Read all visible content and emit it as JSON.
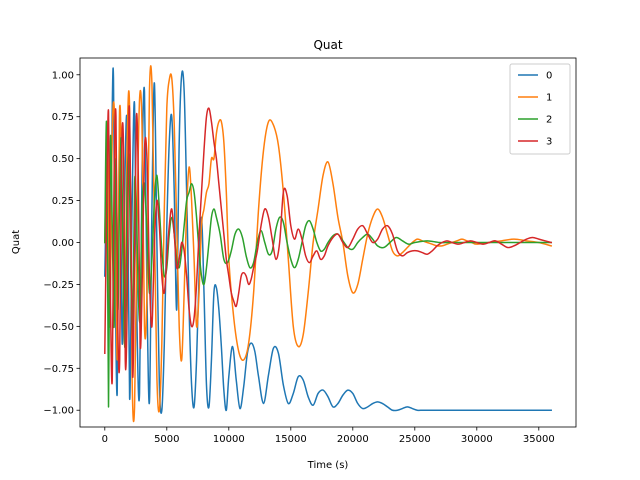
{
  "chart_data": {
    "type": "line",
    "title": "Quat",
    "xlabel": "Time (s)",
    "ylabel": "Quat",
    "xlim": [
      -2000,
      38000
    ],
    "ylim": [
      -1.1,
      1.1
    ],
    "xticks": [
      0,
      5000,
      10000,
      15000,
      20000,
      25000,
      30000,
      35000
    ],
    "xtick_labels": [
      "0",
      "5000",
      "10000",
      "15000",
      "20000",
      "25000",
      "30000",
      "35000"
    ],
    "yticks": [
      -1.0,
      -0.75,
      -0.5,
      -0.25,
      0.0,
      0.25,
      0.5,
      0.75,
      1.0
    ],
    "ytick_labels": [
      "−1.00",
      "−0.75",
      "−0.50",
      "−0.25",
      "0.00",
      "0.25",
      "0.50",
      "0.75",
      "1.00"
    ],
    "grid": false,
    "legend_position": "top-right",
    "series": [
      {
        "name": "0",
        "color": "#1f77b4",
        "x": [
          0,
          200,
          400,
          600,
          700,
          800,
          1000,
          1200,
          1400,
          1600,
          1800,
          2000,
          2200,
          2400,
          2600,
          2800,
          3000,
          3200,
          3400,
          3600,
          3800,
          4000,
          4200,
          4400,
          4600,
          4800,
          5000,
          5200,
          5400,
          5600,
          5800,
          6000,
          6200,
          6400,
          6600,
          6800,
          7000,
          7200,
          7400,
          7600,
          7800,
          8000,
          8200,
          8400,
          8600,
          8800,
          9000,
          9200,
          9400,
          9600,
          9800,
          10000,
          10300,
          10600,
          10900,
          11200,
          11500,
          11800,
          12100,
          12400,
          12800,
          13200,
          13600,
          14000,
          14400,
          14800,
          15200,
          15600,
          16000,
          16400,
          16800,
          17200,
          17600,
          18000,
          18400,
          18800,
          19200,
          19600,
          20000,
          20400,
          20800,
          21200,
          21600,
          22000,
          22400,
          22800,
          23200,
          23600,
          24000,
          24400,
          24800,
          25200,
          25600,
          26000,
          27000,
          28000,
          29000,
          30000,
          31000,
          32000,
          33000,
          34000,
          35000,
          36000
        ],
        "y": [
          -0.2,
          0.4,
          -0.5,
          0.8,
          0.98,
          0.1,
          -0.9,
          0.81,
          -0.6,
          0.3,
          0.7,
          -0.93,
          0.2,
          0.82,
          -0.5,
          -0.9,
          0.4,
          0.9,
          -0.3,
          -0.95,
          0.2,
          0.95,
          0.0,
          -0.85,
          -1.0,
          -0.6,
          0.1,
          0.6,
          0.75,
          0.3,
          -0.4,
          0.6,
          1.0,
          0.9,
          0.3,
          -0.4,
          -0.85,
          -0.98,
          -0.7,
          -0.2,
          0.15,
          -0.3,
          -0.85,
          -0.98,
          -0.7,
          -0.3,
          -0.27,
          -0.4,
          -0.62,
          -0.88,
          -1.0,
          -0.8,
          -0.62,
          -0.82,
          -0.99,
          -0.86,
          -0.66,
          -0.6,
          -0.65,
          -0.8,
          -0.96,
          -0.79,
          -0.63,
          -0.66,
          -0.85,
          -0.96,
          -0.9,
          -0.8,
          -0.82,
          -0.92,
          -0.97,
          -0.9,
          -0.88,
          -0.92,
          -0.98,
          -0.96,
          -0.91,
          -0.88,
          -0.9,
          -0.96,
          -0.99,
          -0.98,
          -0.96,
          -0.95,
          -0.96,
          -0.98,
          -1.0,
          -1.0,
          -0.99,
          -0.98,
          -0.99,
          -1.0,
          -1.0,
          -1.0,
          -1.0,
          -1.0,
          -1.0,
          -1.0,
          -1.0,
          -1.0,
          -1.0,
          -1.0,
          -1.0,
          -1.0
        ]
      },
      {
        "name": "1",
        "color": "#ff7f0e",
        "x": [
          0,
          200,
          400,
          600,
          800,
          1000,
          1200,
          1400,
          1600,
          1800,
          2000,
          2200,
          2400,
          2600,
          2800,
          3000,
          3200,
          3400,
          3600,
          3800,
          4000,
          4200,
          4400,
          4600,
          4800,
          5000,
          5200,
          5400,
          5600,
          5800,
          6000,
          6200,
          6400,
          6600,
          6800,
          7000,
          7200,
          7400,
          7600,
          7800,
          8000,
          8200,
          8400,
          8600,
          8800,
          9000,
          9200,
          9400,
          9600,
          9800,
          10000,
          10400,
          10800,
          11200,
          11600,
          12000,
          12400,
          12800,
          13200,
          13600,
          14000,
          14400,
          14800,
          15200,
          15600,
          16000,
          16400,
          16800,
          17200,
          17600,
          18000,
          18400,
          18800,
          19200,
          19600,
          20000,
          20400,
          20800,
          21200,
          21600,
          22000,
          22400,
          22800,
          23200,
          23600,
          24000,
          24400,
          24800,
          25200,
          25600,
          26000,
          26400,
          26800,
          27200,
          27600,
          28000,
          28400,
          28800,
          29200,
          29600,
          30000,
          31000,
          32000,
          33000,
          34000,
          35000,
          36000
        ],
        "y": [
          0.0,
          0.6,
          -0.5,
          0.65,
          0.7,
          -0.7,
          0.79,
          0.2,
          -0.6,
          0.6,
          0.8,
          -0.8,
          -0.98,
          0.1,
          0.85,
          0.7,
          -0.5,
          -0.3,
          0.9,
          0.95,
          0.1,
          -0.8,
          -1.0,
          -0.6,
          0.2,
          0.8,
          0.97,
          0.98,
          0.7,
          0.1,
          -0.5,
          -0.7,
          -0.3,
          0.2,
          0.45,
          0.25,
          -0.1,
          -0.5,
          -0.3,
          0.1,
          0.2,
          0.3,
          0.35,
          0.5,
          0.5,
          0.65,
          0.72,
          0.72,
          0.6,
          0.3,
          -0.1,
          -0.45,
          -0.65,
          -0.7,
          -0.6,
          -0.3,
          0.2,
          0.55,
          0.72,
          0.7,
          0.58,
          0.3,
          -0.1,
          -0.5,
          -0.62,
          -0.55,
          -0.3,
          0.0,
          0.2,
          0.4,
          0.48,
          0.35,
          0.15,
          0.0,
          -0.2,
          -0.3,
          -0.25,
          -0.1,
          0.05,
          0.15,
          0.2,
          0.15,
          0.05,
          -0.05,
          -0.08,
          -0.06,
          -0.03,
          0.0,
          0.02,
          0.01,
          0.0,
          -0.01,
          -0.02,
          -0.02,
          -0.01,
          0.0,
          0.01,
          0.02,
          0.01,
          0.0,
          -0.01,
          0.0,
          0.01,
          0.02,
          0.01,
          0.0,
          -0.02
        ]
      },
      {
        "name": "2",
        "color": "#2ca02c",
        "x": [
          0,
          150,
          300,
          450,
          600,
          750,
          900,
          1050,
          1200,
          1350,
          1500,
          1650,
          1800,
          1950,
          2100,
          2250,
          2400,
          2550,
          2700,
          2850,
          3000,
          3200,
          3400,
          3600,
          3800,
          4000,
          4200,
          4400,
          4600,
          4800,
          5000,
          5200,
          5400,
          5600,
          5800,
          6000,
          6200,
          6400,
          6600,
          6800,
          7000,
          7200,
          7400,
          7600,
          7800,
          8000,
          8200,
          8400,
          8600,
          8800,
          9000,
          9300,
          9600,
          9900,
          10200,
          10500,
          10800,
          11100,
          11400,
          11700,
          12000,
          12300,
          12600,
          12900,
          13200,
          13500,
          13800,
          14100,
          14400,
          14700,
          15000,
          15300,
          15600,
          15900,
          16200,
          16500,
          16800,
          17100,
          17400,
          17700,
          18000,
          18400,
          18800,
          19200,
          19600,
          20000,
          20400,
          20800,
          21200,
          21600,
          22000,
          22500,
          23000,
          23500,
          24000,
          24500,
          25000,
          26000,
          27000,
          28000,
          29000,
          30000,
          31000,
          32000,
          33000,
          34000,
          35000,
          36000
        ],
        "y": [
          0.0,
          0.7,
          -0.98,
          0.6,
          0.1,
          -0.5,
          0.5,
          -0.4,
          0.3,
          0.6,
          -0.3,
          -0.6,
          0.3,
          0.5,
          -0.2,
          -0.55,
          0.35,
          0.2,
          -0.3,
          -0.45,
          0.2,
          0.35,
          0.05,
          -0.3,
          -0.1,
          0.25,
          0.4,
          0.2,
          -0.05,
          -0.2,
          -0.15,
          0.05,
          0.15,
          0.05,
          -0.1,
          -0.15,
          -0.05,
          0.1,
          0.25,
          0.3,
          0.35,
          0.3,
          0.15,
          -0.05,
          -0.2,
          -0.25,
          -0.15,
          0.0,
          0.15,
          0.2,
          0.15,
          0.05,
          -0.1,
          -0.12,
          -0.05,
          0.05,
          0.08,
          0.03,
          -0.08,
          -0.15,
          -0.12,
          0.0,
          0.07,
          0.0,
          -0.07,
          -0.05,
          0.08,
          0.15,
          0.12,
          0.0,
          -0.1,
          -0.15,
          -0.1,
          0.0,
          0.1,
          0.13,
          0.08,
          0.0,
          -0.05,
          -0.04,
          0.0,
          0.04,
          0.05,
          0.01,
          -0.03,
          -0.04,
          0.0,
          0.03,
          0.05,
          0.02,
          -0.02,
          -0.03,
          0.0,
          0.03,
          0.01,
          -0.01,
          0.0,
          0.01,
          0.0,
          0.0,
          0.0,
          0.0,
          0.0,
          0.0,
          0.0,
          0.0,
          0.0,
          0.0
        ]
      },
      {
        "name": "3",
        "color": "#d62728",
        "x": [
          0,
          150,
          300,
          450,
          600,
          750,
          900,
          1050,
          1200,
          1350,
          1500,
          1650,
          1800,
          1950,
          2100,
          2250,
          2400,
          2550,
          2700,
          2850,
          3000,
          3200,
          3400,
          3600,
          3800,
          4000,
          4200,
          4400,
          4600,
          4800,
          5000,
          5200,
          5400,
          5600,
          5800,
          6000,
          6200,
          6400,
          6600,
          6800,
          7000,
          7200,
          7400,
          7600,
          7800,
          8000,
          8200,
          8400,
          8600,
          8800,
          9000,
          9200,
          9400,
          9600,
          9800,
          10000,
          10200,
          10400,
          10600,
          10800,
          11000,
          11200,
          11400,
          11600,
          11800,
          12000,
          12300,
          12600,
          12900,
          13200,
          13500,
          13800,
          14100,
          14400,
          14700,
          15000,
          15300,
          15600,
          15900,
          16200,
          16500,
          16800,
          17100,
          17400,
          17700,
          18000,
          18400,
          18800,
          19200,
          19600,
          20000,
          20400,
          20800,
          21200,
          21600,
          22000,
          22400,
          22800,
          23200,
          23600,
          24000,
          24400,
          24800,
          25200,
          25600,
          26000,
          26400,
          26800,
          27200,
          27600,
          28000,
          28500,
          29000,
          29500,
          30000,
          30500,
          31000,
          31500,
          32000,
          32500,
          33000,
          33500,
          34000,
          34500,
          35000,
          35500,
          36000
        ],
        "y": [
          -0.66,
          0.2,
          0.78,
          -0.3,
          -0.82,
          0.4,
          0.75,
          -0.5,
          -0.7,
          0.5,
          0.6,
          -0.7,
          -0.4,
          0.8,
          0.2,
          -0.8,
          -0.1,
          0.75,
          0.4,
          -0.6,
          -0.3,
          0.55,
          0.5,
          -0.2,
          -0.5,
          0.0,
          0.25,
          0.1,
          -0.2,
          -0.3,
          -0.1,
          0.1,
          0.2,
          0.05,
          -0.15,
          -0.1,
          0.0,
          -0.05,
          -0.2,
          -0.4,
          -0.5,
          -0.45,
          -0.25,
          0.05,
          0.3,
          0.55,
          0.75,
          0.8,
          0.72,
          0.6,
          0.5,
          0.35,
          0.2,
          0.05,
          -0.1,
          -0.2,
          -0.3,
          -0.35,
          -0.38,
          -0.3,
          -0.2,
          -0.18,
          -0.2,
          -0.25,
          -0.22,
          -0.15,
          -0.05,
          0.1,
          0.2,
          0.15,
          0.02,
          -0.1,
          0.0,
          0.3,
          0.28,
          0.1,
          0.02,
          0.08,
          0.02,
          -0.08,
          -0.12,
          -0.08,
          -0.05,
          -0.1,
          -0.08,
          -0.02,
          0.03,
          0.05,
          0.0,
          -0.03,
          0.02,
          0.08,
          0.1,
          0.05,
          0.0,
          0.02,
          0.08,
          0.1,
          0.05,
          -0.05,
          -0.08,
          -0.06,
          -0.05,
          -0.05,
          -0.06,
          -0.07,
          -0.05,
          -0.02,
          0.0,
          0.01,
          0.0,
          -0.01,
          0.0,
          0.01,
          0.0,
          -0.01,
          0.0,
          0.01,
          -0.01,
          -0.03,
          -0.02,
          0.0,
          0.02,
          0.03,
          0.02,
          0.01,
          0.0
        ]
      }
    ]
  }
}
